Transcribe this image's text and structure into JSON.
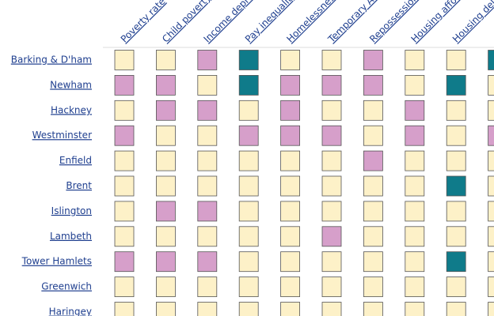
{
  "columns": [
    "Poverty rate",
    "Child poverty rate",
    "Income deprivation",
    "Pay inequality",
    "Homelessness acceptances",
    "Temporary Accommodation",
    "Repossessions",
    "Housing affordability",
    "Housing delivery",
    null
  ],
  "rows": [
    {
      "name": "Barking & D'ham",
      "cells": [
        "#fdf1c8",
        "#fdf1c8",
        "#d69fca",
        "#0f7b8a",
        "#fdf1c8",
        "#fdf1c8",
        "#d69fca",
        "#fdf1c8",
        "#fdf1c8",
        "#0f7b8a"
      ]
    },
    {
      "name": "Newham",
      "cells": [
        "#d69fca",
        "#d69fca",
        "#fdf1c8",
        "#0f7b8a",
        "#d69fca",
        "#d69fca",
        "#d69fca",
        "#fdf1c8",
        "#0f7b8a",
        "#fdf1c8"
      ]
    },
    {
      "name": "Hackney",
      "cells": [
        "#fdf1c8",
        "#d69fca",
        "#d69fca",
        "#fdf1c8",
        "#d69fca",
        "#fdf1c8",
        "#fdf1c8",
        "#d69fca",
        "#fdf1c8",
        "#fdf1c8"
      ]
    },
    {
      "name": "Westminster",
      "cells": [
        "#d69fca",
        "#fdf1c8",
        "#fdf1c8",
        "#d69fca",
        "#d69fca",
        "#d69fca",
        "#fdf1c8",
        "#d69fca",
        "#fdf1c8",
        "#d69fca"
      ]
    },
    {
      "name": "Enfield",
      "cells": [
        "#fdf1c8",
        "#fdf1c8",
        "#fdf1c8",
        "#fdf1c8",
        "#fdf1c8",
        "#fdf1c8",
        "#d69fca",
        "#fdf1c8",
        "#fdf1c8",
        "#fdf1c8"
      ]
    },
    {
      "name": "Brent",
      "cells": [
        "#fdf1c8",
        "#fdf1c8",
        "#fdf1c8",
        "#fdf1c8",
        "#fdf1c8",
        "#fdf1c8",
        "#fdf1c8",
        "#fdf1c8",
        "#0f7b8a",
        "#fdf1c8"
      ]
    },
    {
      "name": "Islington",
      "cells": [
        "#fdf1c8",
        "#d69fca",
        "#d69fca",
        "#fdf1c8",
        "#fdf1c8",
        "#fdf1c8",
        "#fdf1c8",
        "#fdf1c8",
        "#fdf1c8",
        "#fdf1c8"
      ]
    },
    {
      "name": "Lambeth",
      "cells": [
        "#fdf1c8",
        "#fdf1c8",
        "#fdf1c8",
        "#fdf1c8",
        "#fdf1c8",
        "#d69fca",
        "#fdf1c8",
        "#fdf1c8",
        "#fdf1c8",
        "#fdf1c8"
      ]
    },
    {
      "name": "Tower Hamlets",
      "cells": [
        "#d69fca",
        "#d69fca",
        "#d69fca",
        "#fdf1c8",
        "#fdf1c8",
        "#fdf1c8",
        "#fdf1c8",
        "#fdf1c8",
        "#0f7b8a",
        "#fdf1c8"
      ]
    },
    {
      "name": "Greenwich",
      "cells": [
        "#fdf1c8",
        "#fdf1c8",
        "#fdf1c8",
        "#fdf1c8",
        "#fdf1c8",
        "#fdf1c8",
        "#fdf1c8",
        "#fdf1c8",
        "#fdf1c8",
        "#fdf1c8"
      ]
    },
    {
      "name": "Haringey",
      "cells": [
        "#fdf1c8",
        "#fdf1c8",
        "#fdf1c8",
        "#fdf1c8",
        "#fdf1c8",
        "#fdf1c8",
        "#fdf1c8",
        "#fdf1c8",
        "#fdf1c8",
        "#fdf1c8"
      ]
    }
  ]
}
